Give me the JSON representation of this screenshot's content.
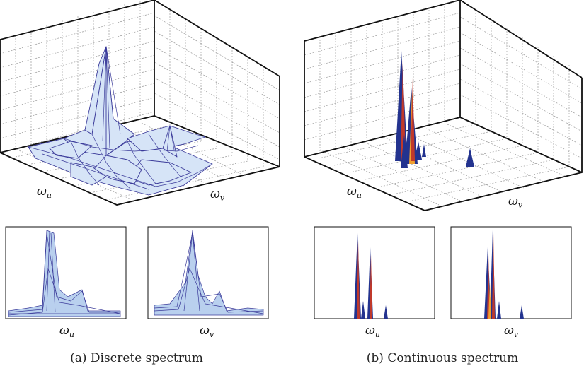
{
  "panels": [
    {
      "id": "discrete",
      "caption": "(a) Discrete spectrum",
      "surface_label_u": "ω",
      "surface_sub_u": "u",
      "surface_label_v": "ω",
      "surface_sub_v": "v",
      "side_label_u": "ω",
      "side_sub_u": "u",
      "side_label_v": "ω",
      "side_sub_v": "v"
    },
    {
      "id": "continuous",
      "caption": "(b) Continuous spectrum",
      "surface_label_u": "ω",
      "surface_sub_u": "u",
      "surface_label_v": "ω",
      "surface_sub_v": "v",
      "side_label_u": "ω",
      "side_sub_u": "u",
      "side_label_v": "ω",
      "side_sub_v": "v"
    }
  ],
  "colors": {
    "surface_fill": "#d6e4f7",
    "surface_line": "#3b3b9a",
    "spike_blue": "#23338f",
    "spike_red": "#c0392b",
    "spike_orange": "#f0a030",
    "grid": "#9a9a9a",
    "frame": "#111111"
  }
}
